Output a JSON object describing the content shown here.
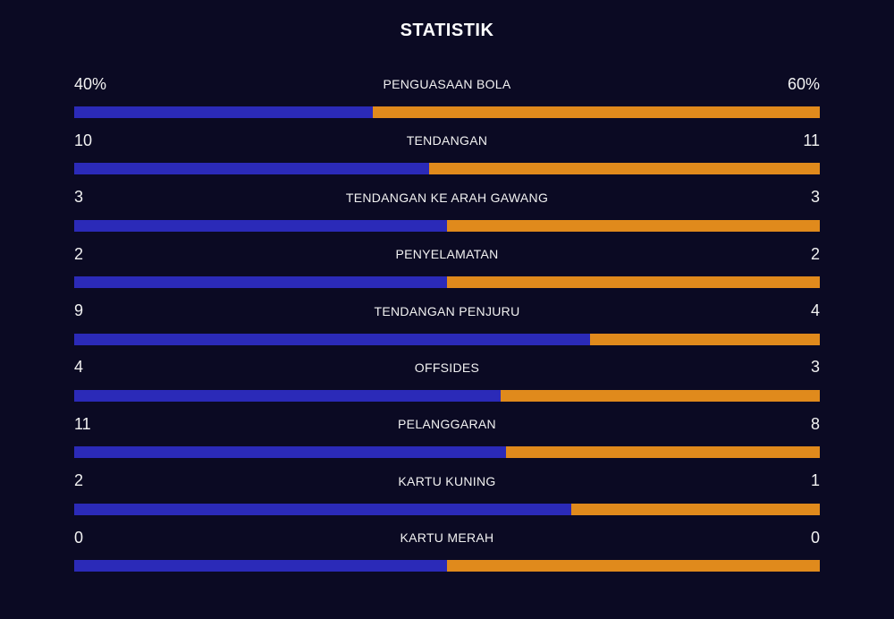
{
  "title": "STATISTIK",
  "colors": {
    "background": "#0b0a23",
    "home": "#2b2ab8",
    "away": "#e08a1c"
  },
  "chart_data": {
    "type": "bar",
    "orientation": "horizontal-split",
    "title": "STATISTIK",
    "categories": [
      "PENGUASAAN BOLA",
      "TENDANGAN",
      "TENDANGAN KE ARAH GAWANG",
      "PENYELAMATAN",
      "TENDANGAN PENJURU",
      "OFFSIDES",
      "PELANGGARAN",
      "KARTU KUNING",
      "KARTU MERAH"
    ],
    "stats": [
      {
        "label": "PENGUASAAN BOLA",
        "home_display": "40%",
        "away_display": "60%",
        "home": 40,
        "away": 60
      },
      {
        "label": "TENDANGAN",
        "home_display": "10",
        "away_display": "11",
        "home": 10,
        "away": 11
      },
      {
        "label": "TENDANGAN KE ARAH GAWANG",
        "home_display": "3",
        "away_display": "3",
        "home": 3,
        "away": 3
      },
      {
        "label": "PENYELAMATAN",
        "home_display": "2",
        "away_display": "2",
        "home": 2,
        "away": 2
      },
      {
        "label": "TENDANGAN PENJURU",
        "home_display": "9",
        "away_display": "4",
        "home": 9,
        "away": 4
      },
      {
        "label": "OFFSIDES",
        "home_display": "4",
        "away_display": "3",
        "home": 4,
        "away": 3
      },
      {
        "label": "PELANGGARAN",
        "home_display": "11",
        "away_display": "8",
        "home": 11,
        "away": 8
      },
      {
        "label": "KARTU KUNING",
        "home_display": "2",
        "away_display": "1",
        "home": 2,
        "away": 1
      },
      {
        "label": "KARTU MERAH",
        "home_display": "0",
        "away_display": "0",
        "home": 0,
        "away": 0
      }
    ]
  }
}
